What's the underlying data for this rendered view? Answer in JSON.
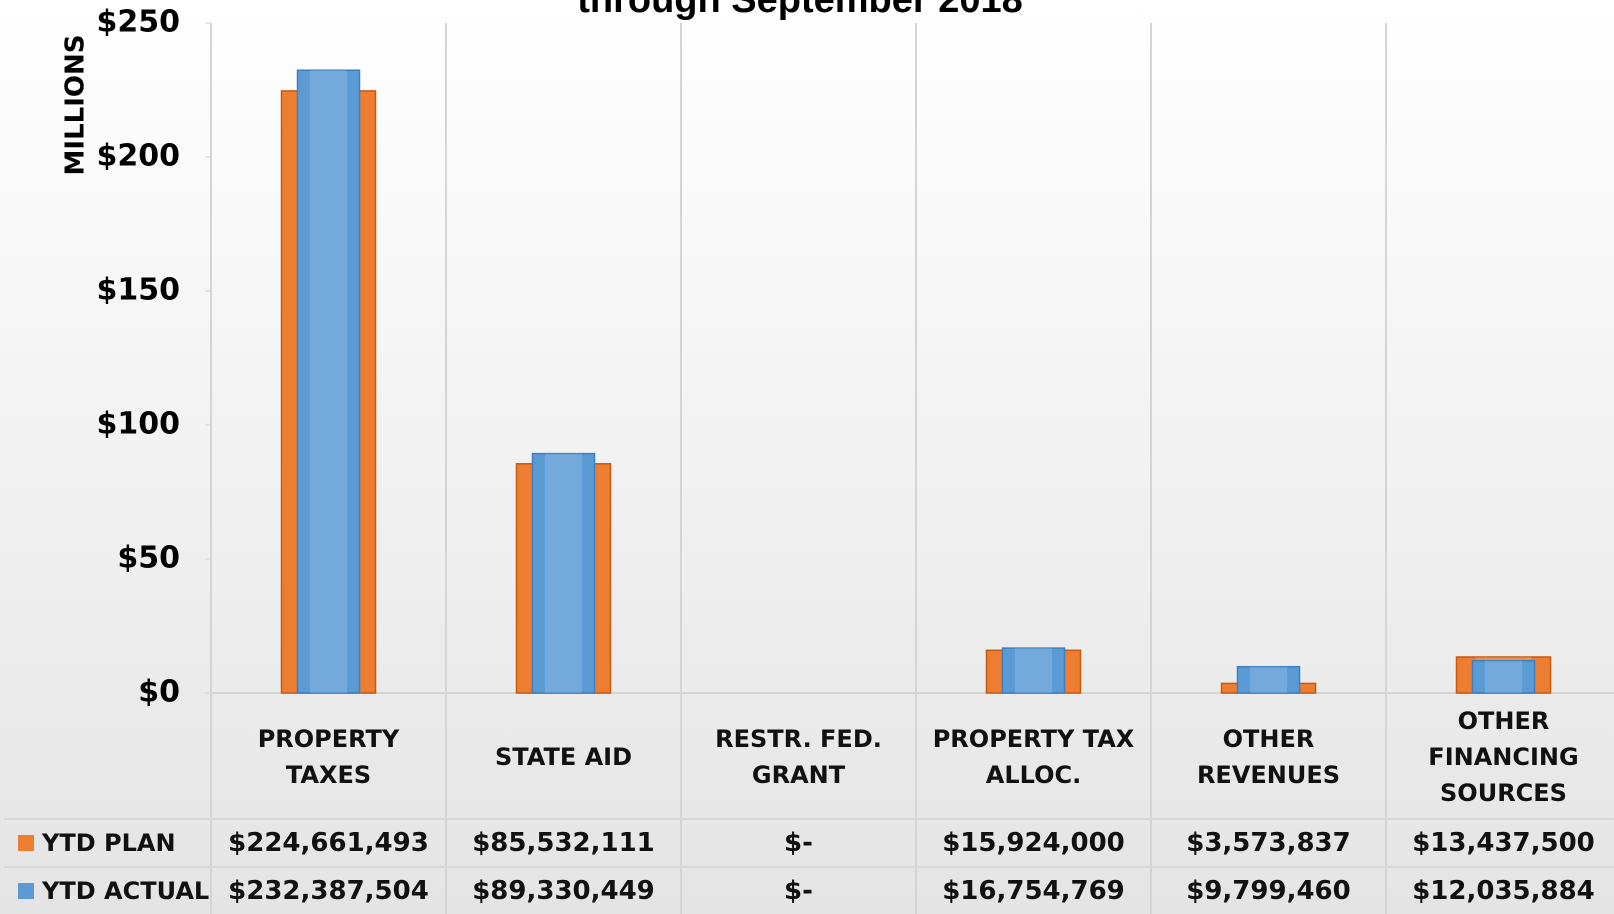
{
  "chart_data": {
    "type": "bar",
    "title": "through September 2018",
    "y_axis_label": "MILLIONS",
    "categories": [
      "PROPERTY TAXES",
      "STATE AID",
      "RESTR. FED. GRANT",
      "PROPERTY TAX ALLOC.",
      "OTHER REVENUES",
      "OTHER FINANCING SOURCES"
    ],
    "series": [
      {
        "name": "YTD PLAN",
        "color": "#ed7d31",
        "values": [
          224.661493,
          85.532111,
          0,
          15.924,
          3.573837,
          13.4375
        ],
        "value_labels": [
          "$224,661,493",
          "$85,532,111",
          "$-",
          "$15,924,000",
          "$3,573,837",
          "$13,437,500"
        ]
      },
      {
        "name": "YTD ACTUAL",
        "color": "#5b9bd5",
        "values": [
          232.387504,
          89.330449,
          0,
          16.754769,
          9.79946,
          12.035884
        ],
        "value_labels": [
          "$232,387,504",
          "$89,330,449",
          "$-",
          "$16,754,769",
          "$9,799,460",
          "$12,035,884"
        ]
      }
    ],
    "ylim": [
      0,
      250
    ],
    "yticks": [
      {
        "value": 0,
        "label": "$0"
      },
      {
        "value": 50,
        "label": "$50"
      },
      {
        "value": 100,
        "label": "$100"
      },
      {
        "value": 150,
        "label": "$150"
      },
      {
        "value": 200,
        "label": "$200"
      },
      {
        "value": 250,
        "label": "$250"
      }
    ]
  }
}
